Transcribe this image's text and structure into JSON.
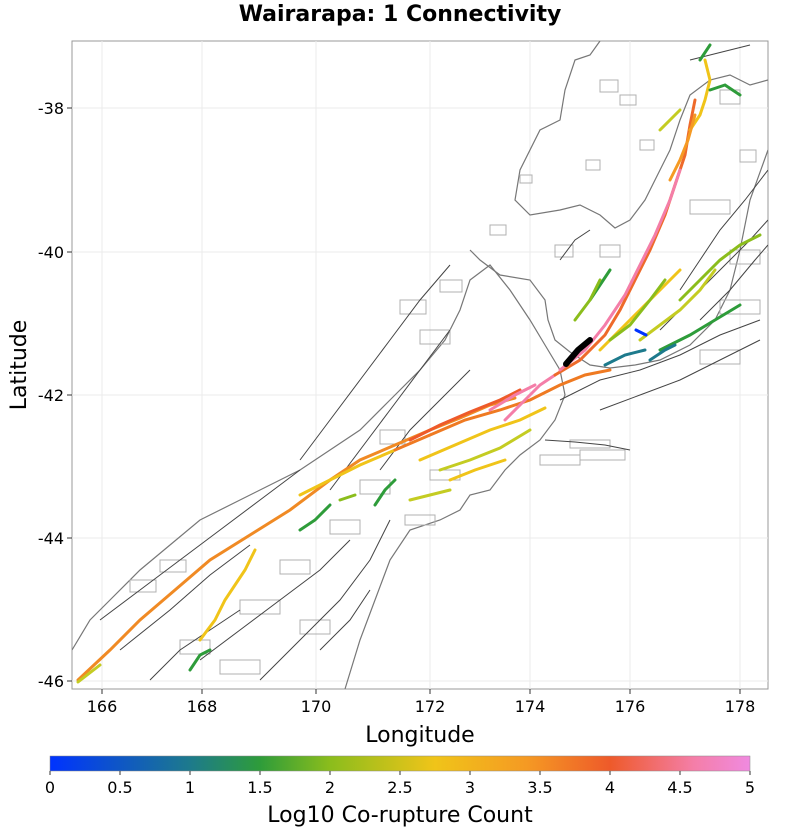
{
  "title": "Wairarapa: 1 Connectivity",
  "x_axis": {
    "label": "Longitude",
    "ticks": [
      "166",
      "168",
      "170",
      "172",
      "174",
      "176",
      "178"
    ],
    "range": [
      165.5,
      178.4
    ]
  },
  "y_axis": {
    "label": "Latitude",
    "ticks": [
      "-38",
      "-40",
      "-42",
      "-44",
      "-46"
    ],
    "range": [
      -46.1,
      -37.0
    ]
  },
  "colorbar": {
    "label": "Log10 Co-rupture Count",
    "ticks": [
      "0",
      "0.5",
      "1",
      "1.5",
      "2",
      "2.5",
      "3",
      "3.5",
      "4",
      "4.5",
      "5"
    ],
    "range": [
      0,
      5
    ],
    "stops": [
      "#0033ff",
      "#1d7a8c",
      "#2e9c3a",
      "#8bbd1c",
      "#f0c419",
      "#f59a23",
      "#ee5a2a",
      "#f47ea8",
      "#f08ae0"
    ]
  },
  "colors": {
    "coastline": "#777777",
    "fault_gray": "#333333",
    "fault_box": "#b0b0b0",
    "selected_fault": "#000000"
  }
}
